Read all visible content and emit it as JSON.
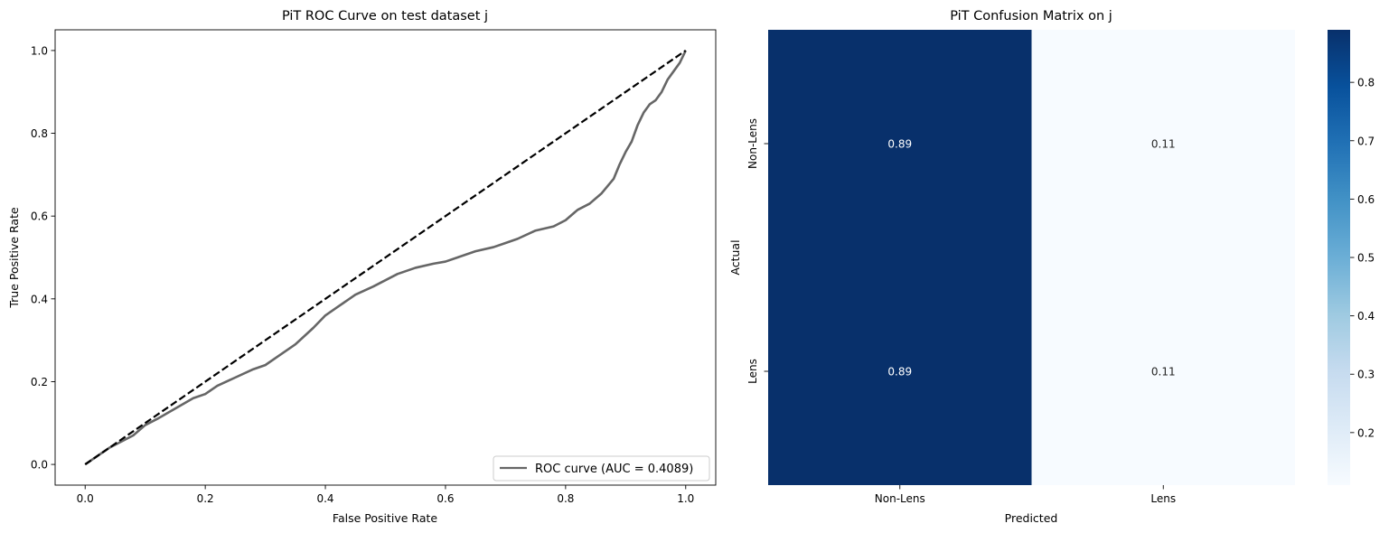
{
  "chart_data": [
    {
      "type": "line",
      "title": "PiT ROC Curve on test dataset j",
      "xlabel": "False Positive Rate",
      "ylabel": "True Positive Rate",
      "xlim": [
        -0.05,
        1.05
      ],
      "ylim": [
        -0.05,
        1.05
      ],
      "x_ticks": [
        0.0,
        0.2,
        0.4,
        0.6,
        0.8,
        1.0
      ],
      "y_ticks": [
        0.0,
        0.2,
        0.4,
        0.6,
        0.8,
        1.0
      ],
      "x_tick_labels": [
        "0.0",
        "0.2",
        "0.4",
        "0.6",
        "0.8",
        "1.0"
      ],
      "y_tick_labels": [
        "0.0",
        "0.2",
        "0.4",
        "0.6",
        "0.8",
        "1.0"
      ],
      "grid": false,
      "legend_position": "lower-right",
      "series": [
        {
          "name": "ROC curve (AUC = 0.4089)",
          "color": "#666666",
          "style": "solid",
          "x": [
            0.0,
            0.02,
            0.04,
            0.06,
            0.08,
            0.1,
            0.12,
            0.15,
            0.18,
            0.2,
            0.22,
            0.25,
            0.28,
            0.3,
            0.32,
            0.35,
            0.38,
            0.4,
            0.42,
            0.45,
            0.48,
            0.5,
            0.52,
            0.55,
            0.58,
            0.6,
            0.62,
            0.65,
            0.68,
            0.7,
            0.72,
            0.75,
            0.78,
            0.8,
            0.82,
            0.84,
            0.86,
            0.88,
            0.89,
            0.9,
            0.91,
            0.92,
            0.93,
            0.94,
            0.95,
            0.96,
            0.97,
            0.98,
            0.99,
            1.0
          ],
          "y": [
            0.0,
            0.02,
            0.04,
            0.055,
            0.07,
            0.095,
            0.11,
            0.135,
            0.16,
            0.17,
            0.19,
            0.21,
            0.23,
            0.24,
            0.26,
            0.29,
            0.33,
            0.36,
            0.38,
            0.41,
            0.43,
            0.445,
            0.46,
            0.475,
            0.485,
            0.49,
            0.5,
            0.515,
            0.525,
            0.535,
            0.545,
            0.565,
            0.575,
            0.59,
            0.615,
            0.63,
            0.655,
            0.69,
            0.725,
            0.755,
            0.78,
            0.82,
            0.85,
            0.87,
            0.88,
            0.9,
            0.93,
            0.95,
            0.97,
            1.0
          ]
        },
        {
          "color": "#000000",
          "style": "dashed",
          "x": [
            0.0,
            1.0
          ],
          "y": [
            0.0,
            1.0
          ]
        }
      ]
    },
    {
      "type": "heatmap",
      "title": "PiT Confusion Matrix on j",
      "xlabel": "Predicted",
      "ylabel": "Actual",
      "x_categories": [
        "Non-Lens",
        "Lens"
      ],
      "y_categories": [
        "Non-Lens",
        "Lens"
      ],
      "values": [
        [
          0.89,
          0.11
        ],
        [
          0.89,
          0.11
        ]
      ],
      "annotations": [
        [
          "0.89",
          "0.11"
        ],
        [
          "0.89",
          "0.11"
        ]
      ],
      "colormap": "Blues",
      "colorbar": {
        "min": 0.11,
        "max": 0.89,
        "ticks": [
          0.2,
          0.3,
          0.4,
          0.5,
          0.6,
          0.7,
          0.8
        ],
        "tick_labels": [
          "0.2",
          "0.3",
          "0.4",
          "0.5",
          "0.6",
          "0.7",
          "0.8"
        ]
      }
    }
  ]
}
